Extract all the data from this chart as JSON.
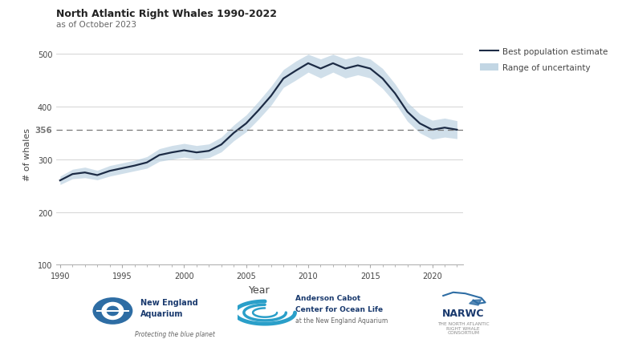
{
  "title": "North Atlantic Right Whales 1990-2022",
  "subtitle": "as of October 2023",
  "xlabel": "Year",
  "ylabel": "# of whales",
  "background_color": "#ffffff",
  "line_color": "#1c2b45",
  "band_color": "#b8cfe0",
  "band_alpha": 0.65,
  "dashed_line_value": 356,
  "dashed_line_color": "#777777",
  "yticks": [
    100,
    200,
    300,
    400,
    500
  ],
  "ylim": [
    100,
    520
  ],
  "xlim": [
    1990,
    2022.5
  ],
  "xticks": [
    1990,
    1995,
    2000,
    2005,
    2010,
    2015,
    2020
  ],
  "years": [
    1990,
    1991,
    1992,
    1993,
    1994,
    1995,
    1996,
    1997,
    1998,
    1999,
    2000,
    2001,
    2002,
    2003,
    2004,
    2005,
    2006,
    2007,
    2008,
    2009,
    2010,
    2011,
    2012,
    2013,
    2014,
    2015,
    2016,
    2017,
    2018,
    2019,
    2020,
    2021,
    2022
  ],
  "best": [
    260,
    272,
    275,
    270,
    278,
    283,
    288,
    294,
    308,
    313,
    317,
    313,
    316,
    328,
    350,
    368,
    393,
    420,
    453,
    468,
    482,
    472,
    482,
    472,
    478,
    472,
    453,
    425,
    390,
    368,
    356,
    360,
    356
  ],
  "upper": [
    268,
    281,
    285,
    279,
    288,
    293,
    298,
    305,
    320,
    326,
    330,
    326,
    329,
    342,
    365,
    384,
    410,
    438,
    470,
    486,
    499,
    490,
    499,
    490,
    496,
    490,
    472,
    443,
    408,
    386,
    374,
    378,
    373
  ],
  "lower": [
    252,
    263,
    265,
    261,
    268,
    273,
    278,
    283,
    296,
    300,
    304,
    300,
    303,
    314,
    335,
    352,
    376,
    402,
    436,
    450,
    465,
    454,
    465,
    454,
    460,
    454,
    434,
    407,
    372,
    350,
    338,
    342,
    339
  ],
  "legend_line_label": "Best population estimate",
  "legend_band_label": "Range of uncertainty",
  "grid_color": "#cccccc",
  "tick_color": "#aaaaaa",
  "label_color": "#444444",
  "title_color": "#222222",
  "subtitle_color": "#666666"
}
